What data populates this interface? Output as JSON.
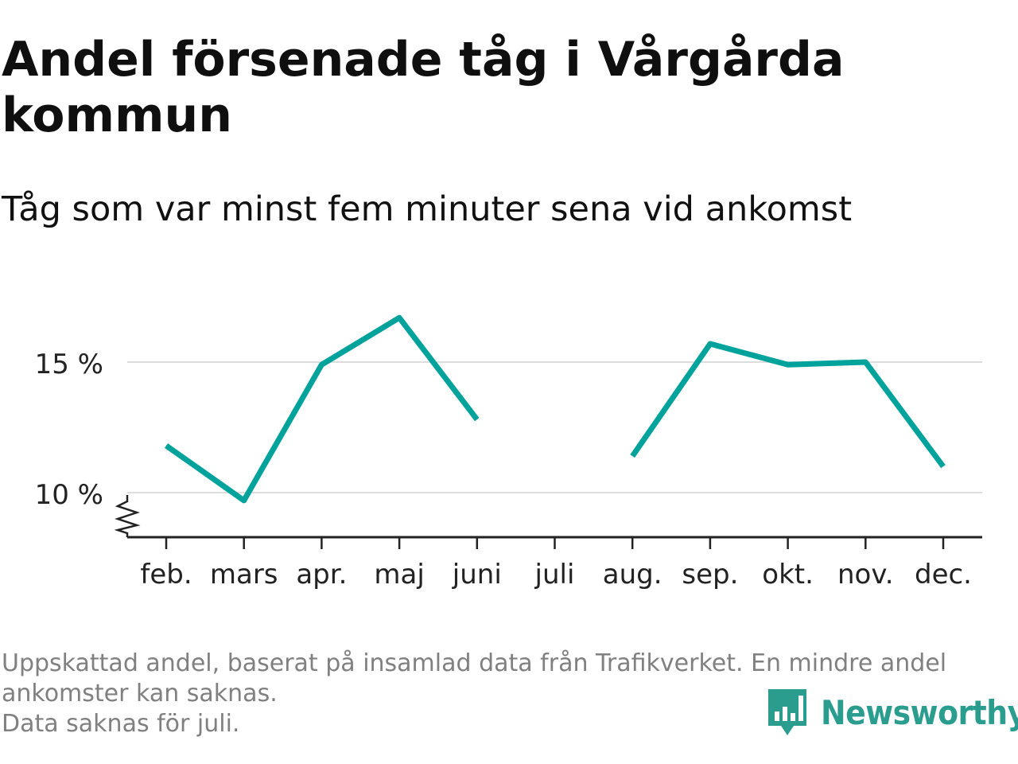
{
  "title": "Andel försenade tåg i Vårgårda kommun",
  "subtitle": "Tåg som var minst fem minuter sena vid ankomst",
  "footnote": {
    "line1": "Uppskattad andel, baserat på insamlad data från Trafikverket. En mindre andel",
    "line2": "ankomster kan saknas.",
    "line3": "Data saknas för juli."
  },
  "brand": {
    "name": "Newsworthy",
    "color": "#2a9d8f",
    "icon": "bar-chart-flag-icon"
  },
  "chart_data": {
    "type": "line",
    "categories": [
      "feb.",
      "mars",
      "apr.",
      "maj",
      "juni",
      "juli",
      "aug.",
      "sep.",
      "okt.",
      "nov.",
      "dec."
    ],
    "series": [
      {
        "values": [
          11.8,
          9.7,
          14.9,
          16.7,
          12.8,
          null,
          11.4,
          15.7,
          14.9,
          15.0,
          11.0
        ]
      }
    ],
    "yticks": [
      {
        "value": 10,
        "label": "10 %"
      },
      {
        "value": 15,
        "label": "15 %"
      }
    ],
    "ylim": [
      8.3,
      17.5
    ],
    "grid": true,
    "axis_break": true,
    "line_color": "#00a39b"
  }
}
